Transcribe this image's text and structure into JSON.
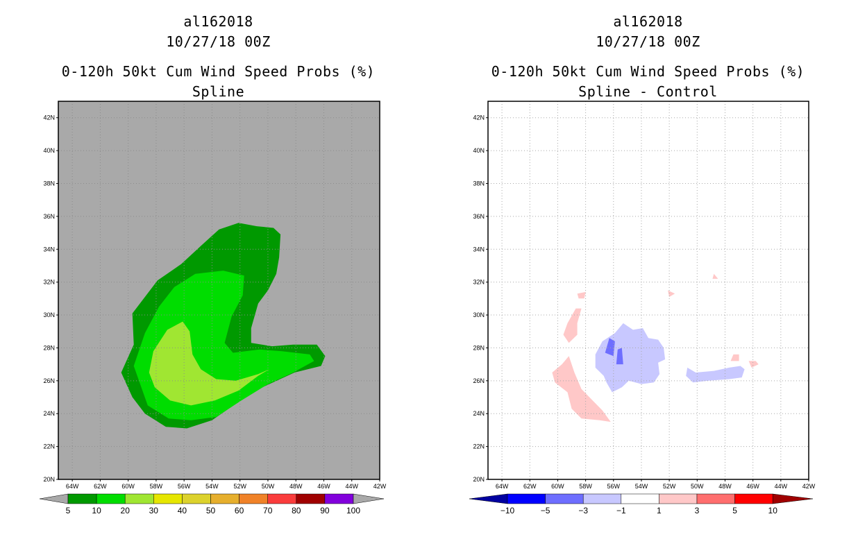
{
  "chart_data": [
    {
      "type": "contour-map",
      "title_lines": [
        "al162018",
        "10/27/18 00Z",
        "0-120h 50kt Cum Wind Speed Probs (%)",
        "Spline"
      ],
      "lon_ticks": [
        "64W",
        "62W",
        "60W",
        "58W",
        "56W",
        "54W",
        "52W",
        "50W",
        "48W",
        "46W",
        "44W",
        "42W"
      ],
      "lat_ticks": [
        "42N",
        "40N",
        "38N",
        "36N",
        "34N",
        "32N",
        "30N",
        "28N",
        "26N",
        "24N",
        "22N",
        "20N"
      ],
      "lon_range": [
        -65,
        -42
      ],
      "lat_range": [
        20,
        43
      ],
      "background_color": "#a9a9a9",
      "contour_levels": [
        5,
        10,
        20,
        30,
        40,
        50,
        60,
        70,
        80,
        90,
        100
      ],
      "colorbar_labels": [
        "5",
        "10",
        "20",
        "30",
        "40",
        "50",
        "60",
        "70",
        "80",
        "90",
        "100"
      ],
      "colorbar_colors": [
        "#009900",
        "#00dd00",
        "#a0e632",
        "#e6e600",
        "#dcd22d",
        "#e6af2d",
        "#f08228",
        "#fa3c3c",
        "#a00000",
        "#8200dc"
      ],
      "regions": [
        {
          "band": "5-10",
          "color": "#009900",
          "points": [
            [
              -60.5,
              26.5
            ],
            [
              -59.6,
              28.2
            ],
            [
              -59.7,
              30.1
            ],
            [
              -57.9,
              32.1
            ],
            [
              -56.2,
              33.1
            ],
            [
              -54.8,
              34.2
            ],
            [
              -53.5,
              35.2
            ],
            [
              -52.1,
              35.6
            ],
            [
              -50.8,
              35.4
            ],
            [
              -49.6,
              35.3
            ],
            [
              -49.1,
              34.9
            ],
            [
              -49.2,
              33.5
            ],
            [
              -49.4,
              32.5
            ],
            [
              -50.0,
              31.5
            ],
            [
              -50.7,
              30.7
            ],
            [
              -51.2,
              29.2
            ],
            [
              -51.2,
              28.3
            ],
            [
              -49.7,
              28.1
            ],
            [
              -48.2,
              28.2
            ],
            [
              -46.5,
              28.2
            ],
            [
              -45.9,
              27.5
            ],
            [
              -46.2,
              26.9
            ],
            [
              -48.1,
              26.5
            ],
            [
              -50.4,
              25.6
            ],
            [
              -52.3,
              24.6
            ],
            [
              -54.0,
              23.6
            ],
            [
              -55.8,
              23.1
            ],
            [
              -57.3,
              23.2
            ],
            [
              -58.8,
              24.0
            ],
            [
              -59.7,
              25.0
            ]
          ]
        },
        {
          "band": "10-20",
          "color": "#00dd00",
          "points": [
            [
              -59.6,
              26.9
            ],
            [
              -58.8,
              28.9
            ],
            [
              -57.8,
              30.5
            ],
            [
              -56.7,
              31.7
            ],
            [
              -55.2,
              32.5
            ],
            [
              -53.2,
              32.7
            ],
            [
              -51.7,
              32.4
            ],
            [
              -51.8,
              31.2
            ],
            [
              -52.6,
              29.9
            ],
            [
              -53.1,
              28.3
            ],
            [
              -52.5,
              27.7
            ],
            [
              -50.6,
              27.9
            ],
            [
              -49.0,
              27.8
            ],
            [
              -47.0,
              27.6
            ],
            [
              -46.7,
              27.2
            ],
            [
              -48.2,
              26.5
            ],
            [
              -50.0,
              25.8
            ],
            [
              -51.9,
              24.8
            ],
            [
              -53.7,
              23.8
            ],
            [
              -55.5,
              23.6
            ],
            [
              -57.1,
              23.7
            ],
            [
              -58.6,
              24.5
            ]
          ]
        },
        {
          "band": "20-30",
          "color": "#a0e632",
          "points": [
            [
              -58.5,
              26.5
            ],
            [
              -58.2,
              27.8
            ],
            [
              -57.2,
              29.1
            ],
            [
              -56.1,
              29.6
            ],
            [
              -55.6,
              29.0
            ],
            [
              -55.4,
              27.6
            ],
            [
              -54.8,
              26.7
            ],
            [
              -53.7,
              26.1
            ],
            [
              -52.3,
              26.0
            ],
            [
              -50.7,
              26.4
            ],
            [
              -49.9,
              26.7
            ],
            [
              -50.7,
              26.3
            ],
            [
              -52.1,
              25.4
            ],
            [
              -53.8,
              24.8
            ],
            [
              -55.5,
              24.5
            ],
            [
              -57.0,
              24.8
            ],
            [
              -58.1,
              25.6
            ]
          ]
        }
      ]
    },
    {
      "type": "contour-map",
      "title_lines": [
        "al162018",
        "10/27/18 00Z",
        "0-120h 50kt Cum Wind Speed Probs (%)",
        "Spline - Control"
      ],
      "lon_ticks": [
        "64W",
        "62W",
        "60W",
        "58W",
        "56W",
        "54W",
        "52W",
        "50W",
        "48W",
        "46W",
        "44W",
        "42W"
      ],
      "lat_ticks": [
        "42N",
        "40N",
        "38N",
        "36N",
        "34N",
        "32N",
        "30N",
        "28N",
        "26N",
        "24N",
        "22N",
        "20N"
      ],
      "lon_range": [
        -65,
        -42
      ],
      "lat_range": [
        20,
        43
      ],
      "grid": true,
      "background_color": "#ffffff",
      "contour_levels": [
        -10,
        -5,
        -3,
        -1,
        1,
        3,
        5,
        10
      ],
      "colorbar_labels": [
        "-10",
        "-5",
        "-3",
        "-1",
        "1",
        "3",
        "5",
        "10"
      ],
      "colorbar_colors": [
        "#0000a0",
        "#0000ff",
        "#6e6eff",
        "#c8c8ff",
        "#ffffff",
        "#ffc8c8",
        "#ff6e6e",
        "#ff0000",
        "#a00000"
      ],
      "regions": [
        {
          "band": "-3 to -1",
          "color": "#c8c8ff",
          "points": [
            [
              -57.3,
              27.6
            ],
            [
              -56.8,
              28.4
            ],
            [
              -55.9,
              28.9
            ],
            [
              -55.3,
              29.5
            ],
            [
              -54.6,
              29.1
            ],
            [
              -53.9,
              29.2
            ],
            [
              -53.5,
              28.6
            ],
            [
              -52.8,
              28.5
            ],
            [
              -52.4,
              28.0
            ],
            [
              -52.3,
              27.3
            ],
            [
              -52.8,
              27.1
            ],
            [
              -52.7,
              26.4
            ],
            [
              -53.1,
              25.9
            ],
            [
              -54.0,
              25.8
            ],
            [
              -54.9,
              26.0
            ],
            [
              -55.4,
              25.6
            ],
            [
              -56.1,
              25.3
            ],
            [
              -56.5,
              25.9
            ],
            [
              -56.7,
              26.3
            ],
            [
              -57.3,
              26.8
            ]
          ]
        },
        {
          "band": "-3 to -1",
          "color": "#c8c8ff",
          "points": [
            [
              -50.7,
              26.8
            ],
            [
              -50.1,
              26.5
            ],
            [
              -48.8,
              26.6
            ],
            [
              -47.7,
              26.8
            ],
            [
              -46.9,
              26.9
            ],
            [
              -46.6,
              26.7
            ],
            [
              -46.8,
              26.2
            ],
            [
              -47.7,
              26.1
            ],
            [
              -49.2,
              26.0
            ],
            [
              -50.3,
              25.9
            ],
            [
              -50.8,
              26.3
            ]
          ]
        },
        {
          "band": "-5 to -3",
          "color": "#6e6eff",
          "points": [
            [
              -56.6,
              27.7
            ],
            [
              -56.3,
              28.6
            ],
            [
              -55.9,
              28.4
            ],
            [
              -56.0,
              27.5
            ]
          ]
        },
        {
          "band": "-5 to -3",
          "color": "#6e6eff",
          "points": [
            [
              -55.7,
              27.9
            ],
            [
              -55.4,
              28.0
            ],
            [
              -55.3,
              27.0
            ],
            [
              -55.8,
              27.0
            ]
          ]
        },
        {
          "band": "1 to 3",
          "color": "#ffc8c8",
          "points": [
            [
              -60.4,
              26.5
            ],
            [
              -59.7,
              27.0
            ],
            [
              -59.2,
              27.5
            ],
            [
              -58.8,
              26.5
            ],
            [
              -58.3,
              25.5
            ],
            [
              -57.5,
              24.8
            ],
            [
              -56.8,
              24.2
            ],
            [
              -56.2,
              23.5
            ],
            [
              -57.0,
              23.6
            ],
            [
              -58.3,
              23.7
            ],
            [
              -59.0,
              24.3
            ],
            [
              -59.3,
              25.3
            ],
            [
              -60.2,
              25.9
            ]
          ]
        },
        {
          "band": "1 to 3",
          "color": "#ffc8c8",
          "points": [
            [
              -59.3,
              29.5
            ],
            [
              -58.7,
              30.4
            ],
            [
              -58.3,
              30.4
            ],
            [
              -58.6,
              29.5
            ],
            [
              -58.6,
              28.8
            ],
            [
              -59.2,
              28.3
            ],
            [
              -59.6,
              28.8
            ]
          ]
        },
        {
          "band": "1 to 3",
          "color": "#ffc8c8",
          "points": [
            [
              -58.6,
              31.3
            ],
            [
              -58.0,
              31.4
            ],
            [
              -58.1,
              31.0
            ],
            [
              -58.5,
              31.0
            ]
          ]
        },
        {
          "band": "1 to 3",
          "color": "#ffc8c8",
          "points": [
            [
              -46.3,
              27.2
            ],
            [
              -45.8,
              27.2
            ],
            [
              -45.6,
              27.0
            ],
            [
              -46.1,
              26.8
            ]
          ]
        },
        {
          "band": "1 to 3",
          "color": "#ffc8c8",
          "points": [
            [
              -47.4,
              27.6
            ],
            [
              -47.0,
              27.6
            ],
            [
              -47.0,
              27.2
            ],
            [
              -47.6,
              27.2
            ]
          ]
        },
        {
          "band": "1 to 3",
          "color": "#ffc8c8",
          "points": [
            [
              -52.1,
              31.5
            ],
            [
              -51.6,
              31.3
            ],
            [
              -52.0,
              31.1
            ]
          ]
        },
        {
          "band": "1 to 3",
          "color": "#ffc8c8",
          "points": [
            [
              -48.8,
              32.5
            ],
            [
              -48.5,
              32.2
            ],
            [
              -48.9,
              32.2
            ]
          ]
        }
      ]
    }
  ]
}
